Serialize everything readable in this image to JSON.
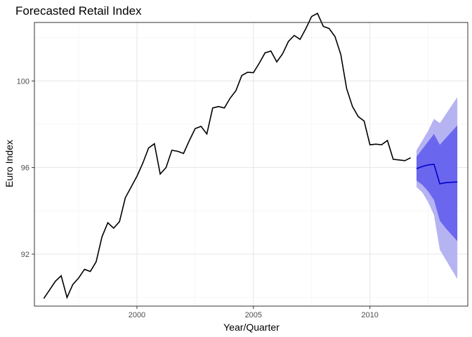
{
  "chart_data": {
    "type": "line",
    "title": "Forecasted Retail Index",
    "xlabel": "Year/Quarter",
    "ylabel": "Euro Index",
    "xlim": [
      1995.6,
      2014.2
    ],
    "ylim": [
      89.6,
      102.7
    ],
    "x_ticks": [
      2000,
      2005,
      2010
    ],
    "x_tick_labels": [
      "2000",
      "2005",
      "2010"
    ],
    "y_ticks": [
      92,
      96,
      100
    ],
    "y_tick_labels": [
      "92",
      "96",
      "100"
    ],
    "grid": true,
    "colors": {
      "history": "#000000",
      "forecast_mean": "#0000cc",
      "band_80": "#6b66ee",
      "band_95": "#b6b3f3"
    },
    "series": [
      {
        "role": "history",
        "x": [
          1996.0,
          1996.25,
          1996.5,
          1996.75,
          1997.0,
          1997.25,
          1997.5,
          1997.75,
          1998.0,
          1998.25,
          1998.5,
          1998.75,
          1999.0,
          1999.25,
          1999.5,
          1999.75,
          2000.0,
          2000.25,
          2000.5,
          2000.75,
          2001.0,
          2001.25,
          2001.5,
          2001.75,
          2002.0,
          2002.25,
          2002.5,
          2002.75,
          2003.0,
          2003.25,
          2003.5,
          2003.75,
          2004.0,
          2004.25,
          2004.5,
          2004.75,
          2005.0,
          2005.25,
          2005.5,
          2005.75,
          2006.0,
          2006.25,
          2006.5,
          2006.75,
          2007.0,
          2007.25,
          2007.5,
          2007.75,
          2008.0,
          2008.25,
          2008.5,
          2008.75,
          2009.0,
          2009.25,
          2009.5,
          2009.75,
          2010.0,
          2010.25,
          2010.5,
          2010.75,
          2011.0,
          2011.25,
          2011.5,
          2011.75
        ],
        "values": [
          89.95,
          90.35,
          90.75,
          91.0,
          90.0,
          90.6,
          90.9,
          91.3,
          91.2,
          91.65,
          92.8,
          93.45,
          93.2,
          93.5,
          94.6,
          95.1,
          95.6,
          96.2,
          96.9,
          97.1,
          95.7,
          96.0,
          96.8,
          96.75,
          96.65,
          97.25,
          97.8,
          97.9,
          97.55,
          98.75,
          98.82,
          98.75,
          99.2,
          99.55,
          100.25,
          100.4,
          100.38,
          100.82,
          101.3,
          101.38,
          100.88,
          101.25,
          101.82,
          102.1,
          101.92,
          102.42,
          102.98,
          103.12,
          102.52,
          102.42,
          102.05,
          101.22,
          99.65,
          98.82,
          98.35,
          98.15,
          97.05,
          97.08,
          97.05,
          97.25,
          96.38,
          96.35,
          96.32,
          96.45
        ]
      },
      {
        "role": "forecast",
        "x": [
          2012.0,
          2012.25,
          2012.5,
          2012.75,
          2013.0,
          2013.25,
          2013.5,
          2013.75
        ],
        "mean": [
          95.95,
          96.05,
          96.12,
          96.15,
          95.25,
          95.3,
          95.32,
          95.33
        ],
        "lo80": [
          95.4,
          95.2,
          94.9,
          94.5,
          93.55,
          93.2,
          92.9,
          92.6
        ],
        "hi80": [
          96.5,
          96.85,
          97.2,
          97.55,
          97.05,
          97.35,
          97.65,
          97.95
        ],
        "lo95": [
          95.1,
          94.85,
          94.4,
          93.8,
          92.2,
          91.75,
          91.3,
          90.85
        ],
        "hi95": [
          96.8,
          97.25,
          97.7,
          98.25,
          98.05,
          98.45,
          98.85,
          99.25
        ]
      }
    ]
  }
}
